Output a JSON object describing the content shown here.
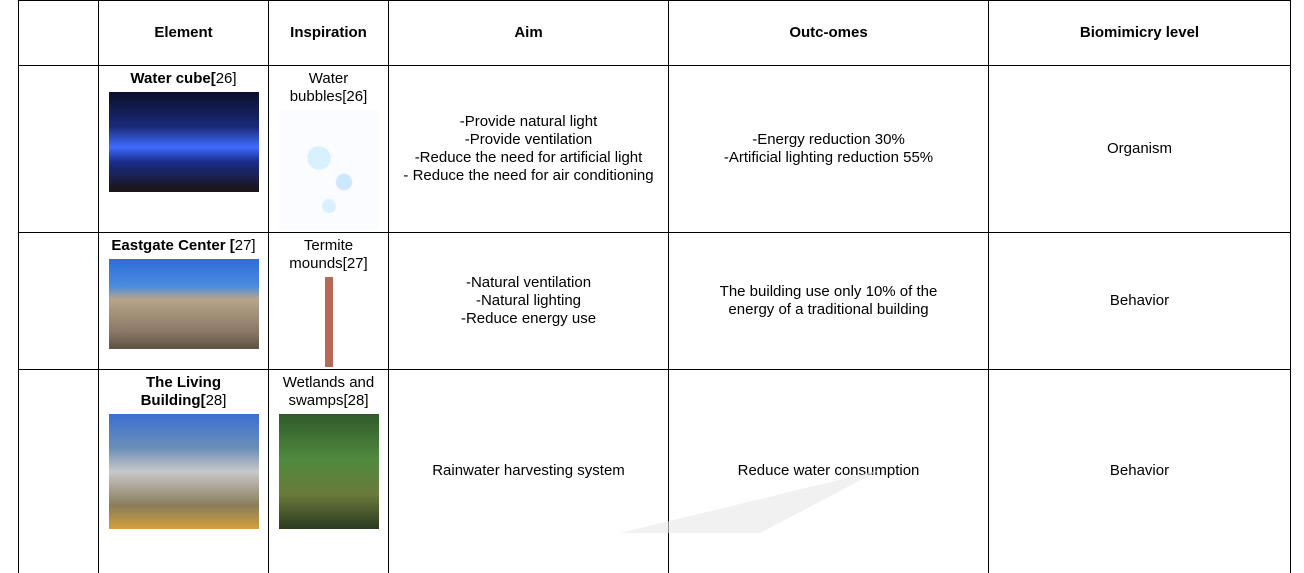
{
  "table": {
    "header": [
      "Element",
      "Inspiration",
      "Aim",
      "Outc-omes",
      "Biomimicry level"
    ],
    "rows": [
      {
        "element_name": "Water cube[",
        "element_ref": "26]",
        "inspiration": "Water bubbles[26]",
        "aim": [
          "-Provide natural light",
          "-Provide ventilation",
          "-Reduce the need for artificial light",
          "- Reduce the need for air conditioning"
        ],
        "outcomes": [
          "-Energy reduction 30%",
          "-Artificial lighting reduction 55%"
        ],
        "level": "Organism"
      },
      {
        "element_name": "Eastgate Center [",
        "element_ref": "27]",
        "inspiration": "Termite mounds[27]",
        "aim": [
          "-Natural ventilation",
          "-Natural lighting",
          "-Reduce energy use"
        ],
        "outcomes": [
          "The building use only 10% of the energy of a traditional building"
        ],
        "level": "Behavior"
      },
      {
        "element_name": "The Living Building[",
        "element_ref": "28]",
        "inspiration": "Wetlands and swamps[28]",
        "aim": [
          "Rainwater harvesting system"
        ],
        "outcomes": [
          "Reduce water consumption"
        ],
        "level": "Behavior"
      }
    ]
  }
}
